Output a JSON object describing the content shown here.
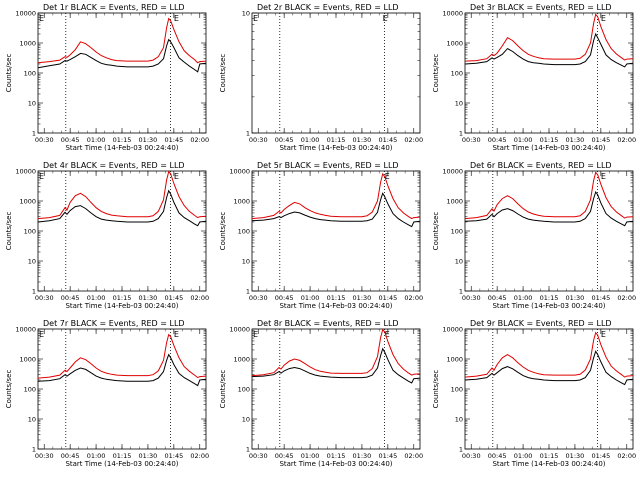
{
  "figure": {
    "background": "#ffffff",
    "series_colors": {
      "events": "#000000",
      "lld": "#e00000"
    },
    "x_tick_labels": [
      "00:30",
      "00:45",
      "01:00",
      "01:15",
      "01:30",
      "01:45",
      "02:00"
    ],
    "y_tick_labels": [
      "1",
      "10",
      "100",
      "1000",
      "10000"
    ],
    "marker_glyph": "E"
  },
  "chart_data": [
    {
      "type": "line",
      "title": "Det 1r BLACK = Events, RED = LLD",
      "xlabel": "Start Time (14-Feb-03 00:24:40)",
      "ylabel": "Counts/sec",
      "xlim": [
        0.44,
        2.06
      ],
      "ylim": [
        1,
        10000
      ],
      "yscale": "log",
      "grid": false,
      "vlines": [
        0.708,
        1.717
      ],
      "marks": [
        {
          "x": 0.45,
          "label": "E"
        },
        {
          "x": 1.75,
          "label": "E"
        }
      ],
      "x": [
        0.44,
        0.55,
        0.65,
        0.7,
        0.72,
        0.75,
        0.8,
        0.85,
        0.9,
        0.95,
        1.0,
        1.05,
        1.1,
        1.15,
        1.2,
        1.3,
        1.4,
        1.5,
        1.55,
        1.6,
        1.65,
        1.68,
        1.7,
        1.72,
        1.75,
        1.8,
        1.85,
        1.9,
        1.95,
        1.98,
        2.0,
        2.06
      ],
      "series": [
        {
          "name": "BLACK = Events",
          "values": [
            150,
            175,
            200,
            260,
            250,
            280,
            350,
            450,
            420,
            330,
            260,
            210,
            190,
            180,
            170,
            160,
            160,
            160,
            170,
            200,
            300,
            800,
            1300,
            1100,
            700,
            320,
            230,
            170,
            130,
            110,
            200,
            210
          ]
        },
        {
          "name": "RED = LLD",
          "values": [
            220,
            240,
            270,
            350,
            330,
            400,
            600,
            1100,
            950,
            700,
            500,
            380,
            320,
            280,
            260,
            250,
            250,
            250,
            270,
            350,
            700,
            3200,
            6500,
            5500,
            2800,
            1100,
            550,
            380,
            280,
            220,
            240,
            250
          ]
        }
      ]
    },
    {
      "type": "line",
      "title": "Det 2r BLACK = Events, RED = LLD",
      "xlabel": "Start Time (14-Feb-03 00:24:40)",
      "ylabel": "Counts/sec",
      "xlim": [
        0.44,
        2.06
      ],
      "ylim": [
        1,
        10
      ],
      "yscale": "log",
      "grid": false,
      "vlines": [
        0.708,
        1.717
      ],
      "marks": [
        {
          "x": 0.45,
          "label": "E"
        },
        {
          "x": 1.7,
          "label": "E"
        }
      ],
      "y_tick_labels": [
        "1",
        "10"
      ],
      "x": [],
      "series": []
    },
    {
      "type": "line",
      "title": "Det 3r BLACK = Events, RED = LLD",
      "xlabel": "Start Time (14-Feb-03 00:24:40)",
      "ylabel": "Counts/sec",
      "xlim": [
        0.44,
        2.06
      ],
      "ylim": [
        1,
        10000
      ],
      "yscale": "log",
      "grid": false,
      "vlines": [
        0.708,
        1.717
      ],
      "marks": [
        {
          "x": 1.75,
          "label": "E"
        }
      ],
      "x": [
        0.44,
        0.55,
        0.65,
        0.7,
        0.72,
        0.75,
        0.8,
        0.85,
        0.9,
        0.95,
        1.0,
        1.05,
        1.1,
        1.15,
        1.2,
        1.3,
        1.4,
        1.5,
        1.55,
        1.6,
        1.65,
        1.68,
        1.7,
        1.72,
        1.75,
        1.8,
        1.85,
        1.9,
        1.95,
        1.98,
        2.0,
        2.06
      ],
      "series": [
        {
          "name": "BLACK = Events",
          "values": [
            200,
            210,
            240,
            320,
            290,
            330,
            420,
            650,
            520,
            380,
            290,
            240,
            220,
            210,
            200,
            190,
            190,
            190,
            200,
            240,
            400,
            1200,
            2000,
            1500,
            900,
            400,
            280,
            220,
            180,
            160,
            200,
            210
          ]
        },
        {
          "name": "RED = LLD",
          "values": [
            250,
            260,
            300,
            420,
            380,
            460,
            800,
            1500,
            1200,
            800,
            560,
            420,
            360,
            320,
            300,
            290,
            290,
            290,
            310,
            420,
            1000,
            4500,
            9000,
            7500,
            3500,
            1300,
            650,
            430,
            320,
            270,
            290,
            300
          ]
        }
      ]
    },
    {
      "type": "line",
      "title": "Det 4r BLACK = Events, RED = LLD",
      "xlabel": "Start Time (14-Feb-03 00:24:40)",
      "ylabel": "Counts/sec",
      "xlim": [
        0.44,
        2.06
      ],
      "ylim": [
        1,
        10000
      ],
      "yscale": "log",
      "grid": false,
      "vlines": [
        0.708,
        1.717
      ],
      "marks": [
        {
          "x": 0.45,
          "label": "E"
        },
        {
          "x": 1.75,
          "label": "E"
        }
      ],
      "x": [
        0.44,
        0.55,
        0.65,
        0.7,
        0.72,
        0.75,
        0.8,
        0.85,
        0.9,
        0.95,
        1.0,
        1.05,
        1.1,
        1.15,
        1.2,
        1.3,
        1.4,
        1.5,
        1.55,
        1.6,
        1.65,
        1.68,
        1.7,
        1.72,
        1.75,
        1.8,
        1.85,
        1.9,
        1.95,
        1.98,
        2.0,
        2.06
      ],
      "series": [
        {
          "name": "BLACK = Events",
          "values": [
            200,
            220,
            260,
            420,
            360,
            480,
            650,
            700,
            560,
            400,
            300,
            250,
            230,
            220,
            210,
            200,
            200,
            200,
            210,
            260,
            450,
            1300,
            2200,
            1700,
            900,
            400,
            280,
            220,
            170,
            150,
            200,
            210
          ]
        },
        {
          "name": "RED = LLD",
          "values": [
            260,
            280,
            330,
            600,
            500,
            900,
            1500,
            1800,
            1400,
            900,
            600,
            450,
            380,
            340,
            320,
            300,
            300,
            300,
            320,
            450,
            1100,
            5000,
            9500,
            8000,
            3800,
            1400,
            700,
            450,
            330,
            280,
            300,
            310
          ]
        }
      ]
    },
    {
      "type": "line",
      "title": "Det 5r BLACK = Events, RED = LLD",
      "xlabel": "Start Time (14-Feb-03 00:24:40)",
      "ylabel": "Counts/sec",
      "xlim": [
        0.44,
        2.06
      ],
      "ylim": [
        1,
        10000
      ],
      "yscale": "log",
      "grid": false,
      "vlines": [
        0.708,
        1.717
      ],
      "marks": [
        {
          "x": 1.72,
          "label": "E"
        }
      ],
      "x": [
        0.44,
        0.55,
        0.65,
        0.7,
        0.72,
        0.75,
        0.8,
        0.85,
        0.9,
        0.95,
        1.0,
        1.05,
        1.1,
        1.15,
        1.2,
        1.3,
        1.4,
        1.5,
        1.55,
        1.6,
        1.65,
        1.68,
        1.7,
        1.72,
        1.75,
        1.8,
        1.85,
        1.9,
        1.95,
        1.98,
        2.0,
        2.06
      ],
      "series": [
        {
          "name": "BLACK = Events",
          "values": [
            220,
            230,
            260,
            300,
            280,
            320,
            380,
            430,
            400,
            340,
            290,
            260,
            240,
            230,
            220,
            210,
            210,
            210,
            220,
            250,
            420,
            1100,
            1800,
            1400,
            800,
            380,
            260,
            200,
            160,
            140,
            200,
            210
          ]
        },
        {
          "name": "RED = LLD",
          "values": [
            260,
            280,
            330,
            450,
            400,
            520,
            700,
            900,
            800,
            600,
            480,
            400,
            360,
            330,
            310,
            300,
            300,
            300,
            320,
            430,
            1000,
            4200,
            8000,
            6500,
            3200,
            1200,
            600,
            400,
            300,
            260,
            280,
            290
          ]
        }
      ]
    },
    {
      "type": "line",
      "title": "Det 6r BLACK = Events, RED = LLD",
      "xlabel": "Start Time (14-Feb-03 00:24:40)",
      "ylabel": "Counts/sec",
      "xlim": [
        0.44,
        2.06
      ],
      "ylim": [
        1,
        10000
      ],
      "yscale": "log",
      "grid": false,
      "vlines": [
        0.708,
        1.717
      ],
      "marks": [
        {
          "x": 1.75,
          "label": "E"
        }
      ],
      "x": [
        0.44,
        0.55,
        0.65,
        0.7,
        0.72,
        0.75,
        0.8,
        0.85,
        0.9,
        0.95,
        1.0,
        1.05,
        1.1,
        1.15,
        1.2,
        1.3,
        1.4,
        1.5,
        1.55,
        1.6,
        1.65,
        1.68,
        1.7,
        1.72,
        1.75,
        1.8,
        1.85,
        1.9,
        1.95,
        1.98,
        2.0,
        2.06
      ],
      "series": [
        {
          "name": "BLACK = Events",
          "values": [
            210,
            220,
            250,
            360,
            300,
            380,
            500,
            560,
            480,
            370,
            290,
            250,
            230,
            220,
            210,
            200,
            200,
            200,
            210,
            260,
            450,
            1200,
            2000,
            1600,
            850,
            380,
            270,
            210,
            170,
            150,
            200,
            210
          ]
        },
        {
          "name": "RED = LLD",
          "values": [
            260,
            280,
            330,
            550,
            460,
            750,
            1200,
            1500,
            1200,
            800,
            560,
            430,
            370,
            330,
            310,
            300,
            300,
            300,
            320,
            450,
            1100,
            4800,
            9000,
            7500,
            3600,
            1300,
            650,
            430,
            320,
            270,
            290,
            300
          ]
        }
      ]
    },
    {
      "type": "line",
      "title": "Det 7r BLACK = Events, RED = LLD",
      "xlabel": "Start Time (14-Feb-03 00:24:40)",
      "ylabel": "Counts/sec",
      "xlim": [
        0.44,
        2.06
      ],
      "ylim": [
        1,
        10000
      ],
      "yscale": "log",
      "grid": false,
      "vlines": [
        0.708,
        1.717
      ],
      "marks": [
        {
          "x": 0.45,
          "label": "E"
        },
        {
          "x": 1.75,
          "label": "E"
        }
      ],
      "x": [
        0.44,
        0.55,
        0.65,
        0.7,
        0.72,
        0.75,
        0.8,
        0.85,
        0.9,
        0.95,
        1.0,
        1.05,
        1.1,
        1.15,
        1.2,
        1.3,
        1.4,
        1.5,
        1.55,
        1.6,
        1.65,
        1.68,
        1.7,
        1.72,
        1.75,
        1.8,
        1.85,
        1.9,
        1.95,
        1.98,
        2.0,
        2.06
      ],
      "series": [
        {
          "name": "BLACK = Events",
          "values": [
            180,
            190,
            220,
            300,
            270,
            320,
            420,
            500,
            450,
            350,
            270,
            230,
            210,
            200,
            190,
            180,
            180,
            180,
            190,
            230,
            380,
            900,
            1400,
            1100,
            650,
            330,
            240,
            190,
            150,
            130,
            200,
            210
          ]
        },
        {
          "name": "RED = LLD",
          "values": [
            230,
            250,
            290,
            420,
            380,
            500,
            800,
            1100,
            950,
            700,
            500,
            390,
            340,
            310,
            290,
            280,
            280,
            280,
            300,
            400,
            900,
            3500,
            6500,
            5500,
            2800,
            1100,
            560,
            390,
            290,
            240,
            260,
            270
          ]
        }
      ]
    },
    {
      "type": "line",
      "title": "Det 8r BLACK = Events, RED = LLD",
      "xlabel": "Start Time (14-Feb-03 00:24:40)",
      "ylabel": "Counts/sec",
      "xlim": [
        0.44,
        2.06
      ],
      "ylim": [
        1,
        10000
      ],
      "yscale": "log",
      "grid": false,
      "vlines": [
        0.708,
        1.717
      ],
      "marks": [
        {
          "x": 0.45,
          "label": "E"
        },
        {
          "x": 1.72,
          "label": "E"
        }
      ],
      "x": [
        0.44,
        0.55,
        0.65,
        0.7,
        0.72,
        0.75,
        0.8,
        0.85,
        0.9,
        0.95,
        1.0,
        1.05,
        1.1,
        1.15,
        1.2,
        1.3,
        1.4,
        1.5,
        1.55,
        1.6,
        1.65,
        1.68,
        1.7,
        1.72,
        1.75,
        1.8,
        1.85,
        1.9,
        1.95,
        1.98,
        2.0,
        2.06
      ],
      "series": [
        {
          "name": "BLACK = Events",
          "values": [
            260,
            270,
            300,
            380,
            340,
            400,
            480,
            520,
            480,
            400,
            330,
            290,
            270,
            260,
            250,
            240,
            240,
            240,
            250,
            290,
            500,
            1300,
            2200,
            1700,
            950,
            420,
            300,
            230,
            180,
            160,
            220,
            230
          ]
        },
        {
          "name": "RED = LLD",
          "values": [
            280,
            300,
            350,
            520,
            460,
            620,
            850,
            1000,
            900,
            700,
            540,
            440,
            390,
            360,
            340,
            330,
            330,
            330,
            350,
            480,
            1200,
            5200,
            9500,
            8000,
            3800,
            1400,
            700,
            460,
            340,
            290,
            310,
            320
          ]
        }
      ]
    },
    {
      "type": "line",
      "title": "Det 9r BLACK = Events, RED = LLD",
      "xlabel": "Start Time (14-Feb-03 00:24:40)",
      "ylabel": "Counts/sec",
      "xlim": [
        0.44,
        2.06
      ],
      "ylim": [
        1,
        10000
      ],
      "yscale": "log",
      "grid": false,
      "vlines": [
        0.708,
        1.717
      ],
      "marks": [
        {
          "x": 1.75,
          "label": "E"
        }
      ],
      "x": [
        0.44,
        0.55,
        0.65,
        0.7,
        0.72,
        0.75,
        0.8,
        0.85,
        0.9,
        0.95,
        1.0,
        1.05,
        1.1,
        1.15,
        1.2,
        1.3,
        1.4,
        1.5,
        1.55,
        1.6,
        1.65,
        1.68,
        1.7,
        1.72,
        1.75,
        1.8,
        1.85,
        1.9,
        1.95,
        1.98,
        2.0,
        2.06
      ],
      "series": [
        {
          "name": "BLACK = Events",
          "values": [
            200,
            210,
            240,
            330,
            290,
            350,
            480,
            560,
            470,
            360,
            280,
            240,
            220,
            210,
            200,
            190,
            190,
            190,
            200,
            240,
            420,
            1100,
            1800,
            1400,
            800,
            360,
            260,
            200,
            160,
            140,
            200,
            210
          ]
        },
        {
          "name": "RED = LLD",
          "values": [
            250,
            270,
            310,
            500,
            420,
            650,
            1100,
            1400,
            1100,
            750,
            540,
            420,
            360,
            320,
            300,
            290,
            290,
            290,
            310,
            430,
            1000,
            4200,
            7500,
            6200,
            3000,
            1150,
            580,
            400,
            300,
            250,
            270,
            280
          ]
        }
      ]
    }
  ]
}
